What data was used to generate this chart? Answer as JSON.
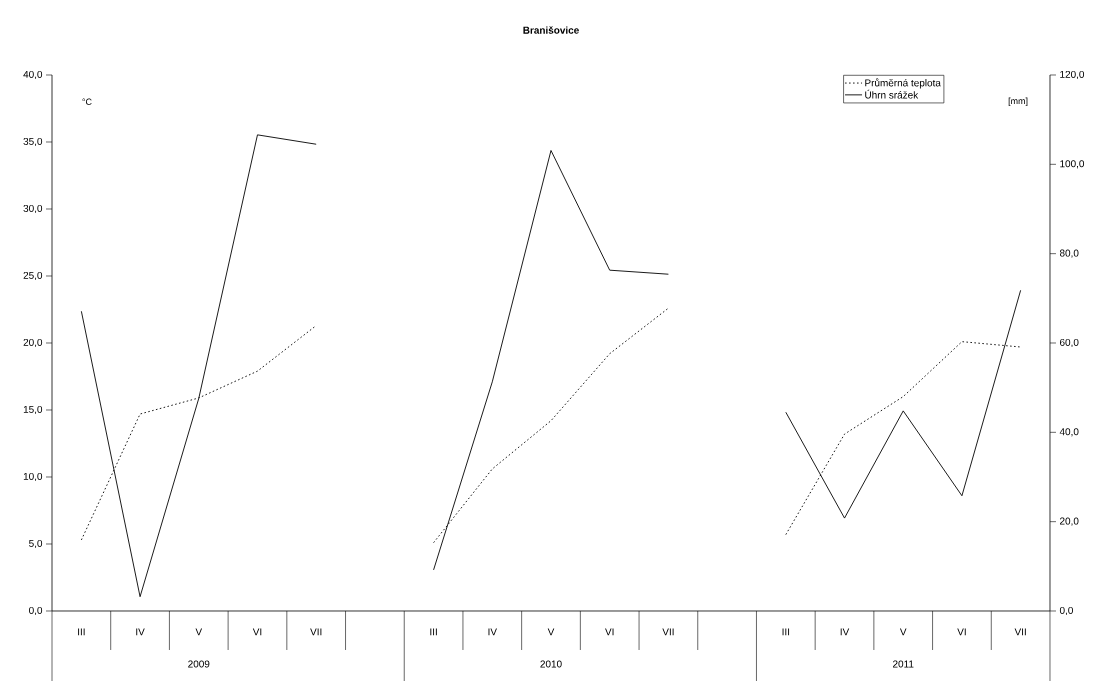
{
  "chart_data": {
    "type": "line",
    "title": "Branišovice",
    "ylabel": "°C",
    "y2label": "[mm]",
    "categories": [
      "III",
      "IV",
      "V",
      "VI",
      "VII",
      null,
      "III",
      "IV",
      "V",
      "VI",
      "VII",
      null,
      "III",
      "IV",
      "V",
      "VI",
      "VII"
    ],
    "series": [
      {
        "name": "Průměrná teplota",
        "color": "#000000",
        "line_style": "dotted",
        "values": [
          5.3,
          14.7,
          15.9,
          17.9,
          21.3,
          null,
          5.1,
          10.6,
          14.2,
          19.2,
          22.6,
          null,
          5.7,
          13.2,
          16.0,
          20.1,
          19.7
        ]
      },
      {
        "name": "Úhrn srážek",
        "color": "#000000",
        "line_style": "solid",
        "axis": "y2",
        "values": [
          67.1,
          3.2,
          47.6,
          106.6,
          104.5,
          null,
          9.2,
          51.3,
          103.1,
          76.3,
          75.4,
          null,
          44.5,
          20.8,
          44.8,
          25.8,
          71.8
        ]
      }
    ],
    "ylim": [
      0,
      40
    ],
    "yticks": [
      {
        "value": 0,
        "label": "0,0"
      },
      {
        "value": 5,
        "label": "5,0"
      },
      {
        "value": 10,
        "label": "10,0"
      },
      {
        "value": 15,
        "label": "15,0"
      },
      {
        "value": 20,
        "label": "20,0"
      },
      {
        "value": 25,
        "label": "25,0"
      },
      {
        "value": 30,
        "label": "30,0"
      },
      {
        "value": 35,
        "label": "35,0"
      },
      {
        "value": 40,
        "label": "40,0"
      }
    ],
    "y2lim": [
      0,
      120
    ],
    "y2ticks": [
      {
        "value": 0,
        "label": "0,0"
      },
      {
        "value": 20,
        "label": "20,0"
      },
      {
        "value": 40,
        "label": "40,0"
      },
      {
        "value": 60,
        "label": "60,0"
      },
      {
        "value": 80,
        "label": "80,0"
      },
      {
        "value": 100,
        "label": "100,0"
      },
      {
        "value": 120,
        "label": "120,0"
      }
    ],
    "annotations": [
      "2009",
      "2010",
      "2011"
    ],
    "legend": "top right"
  }
}
